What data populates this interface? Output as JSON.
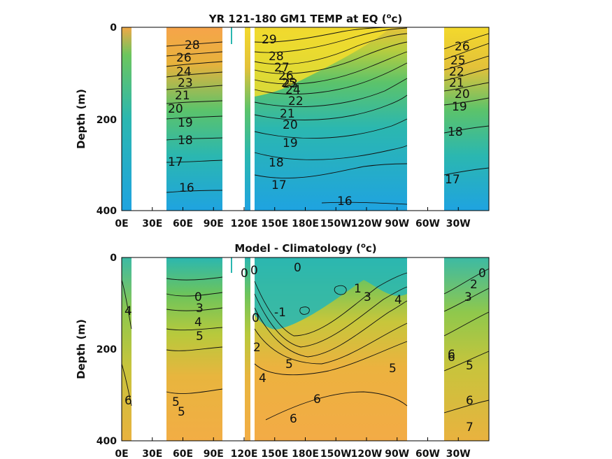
{
  "chart_data": [
    {
      "type": "heatmap",
      "title_main": "YR 121-180 GM1 TEMP at EQ (",
      "title_sup": "o",
      "title_end": "c)",
      "ylabel": "Depth (m)",
      "ylim": [
        400,
        0
      ],
      "xlim": [
        0,
        360
      ],
      "y_ticks": [
        "0",
        "200",
        "400"
      ],
      "x_ticks": [
        "0E",
        "30E",
        "60E",
        "90E",
        "120E",
        "150E",
        "180E",
        "150W",
        "120W",
        "90W",
        "60W",
        "30W"
      ],
      "colormap": [
        "#1fa3e0",
        "#2bb7b0",
        "#5cc36a",
        "#a4cf3c",
        "#e8bf3a",
        "#f6a44a",
        "#f6e328"
      ],
      "land_gaps_lon": [
        [
          8,
          43
        ],
        [
          96,
          115
        ],
        [
          120,
          123
        ],
        [
          125,
          127
        ],
        [
          282,
          310
        ]
      ],
      "contour_labels": [
        "29",
        "28",
        "27",
        "26",
        "25",
        "24",
        "23",
        "22",
        "21",
        "20",
        "19",
        "18",
        "17",
        "16",
        "28",
        "26",
        "24",
        "23",
        "21",
        "20",
        "19",
        "18",
        "17",
        "16",
        "26",
        "25",
        "22",
        "21",
        "20",
        "19",
        "18",
        "17"
      ]
    },
    {
      "type": "heatmap",
      "title_main": "Model - Climatology (",
      "title_sup": "o",
      "title_end": "c)",
      "ylabel": "Depth (m)",
      "ylim": [
        400,
        0
      ],
      "xlim": [
        0,
        360
      ],
      "y_ticks": [
        "0",
        "200",
        "400"
      ],
      "x_ticks": [
        "0E",
        "30E",
        "60E",
        "90E",
        "120E",
        "150E",
        "180E",
        "150W",
        "120W",
        "90W",
        "60W",
        "30W"
      ],
      "colormap": [
        "#2bb7b0",
        "#5cc36a",
        "#a4cf3c",
        "#d7c43c",
        "#f0b13f",
        "#f6a44a"
      ],
      "land_gaps_lon": [
        [
          8,
          43
        ],
        [
          96,
          115
        ],
        [
          120,
          123
        ],
        [
          125,
          127
        ],
        [
          282,
          310
        ]
      ],
      "contour_labels": [
        "0",
        "0",
        "0",
        "1",
        "3",
        "4",
        "-1",
        "0",
        "2",
        "4",
        "5",
        "5",
        "6",
        "6",
        "0",
        "3",
        "4",
        "5",
        "4",
        "5",
        "5",
        "6",
        "6",
        "0",
        "2",
        "3",
        "6",
        "5",
        "6",
        "7"
      ]
    }
  ]
}
